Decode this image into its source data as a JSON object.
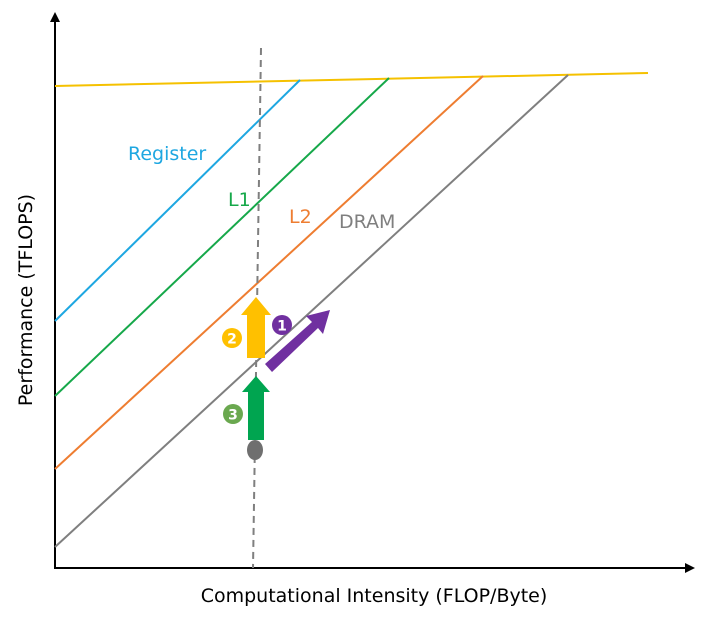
{
  "axes": {
    "xlabel": "Computational Intensity (FLOP/Byte)",
    "ylabel": "Performance (TFLOPS)"
  },
  "rooflines": [
    {
      "name": "Register",
      "color": "#1ea7e1"
    },
    {
      "name": "L1",
      "color": "#16a84a"
    },
    {
      "name": "L2",
      "color": "#ee7d31"
    },
    {
      "name": "DRAM",
      "color": "#7f7f7f"
    }
  ],
  "compute_roof_color": "#f5c100",
  "steps": [
    {
      "number": "1",
      "color": "#7030a0"
    },
    {
      "number": "2",
      "color": "#ffc000"
    },
    {
      "number": "3",
      "color": "#00a550"
    }
  ],
  "point_color": "#6f6f6f"
}
